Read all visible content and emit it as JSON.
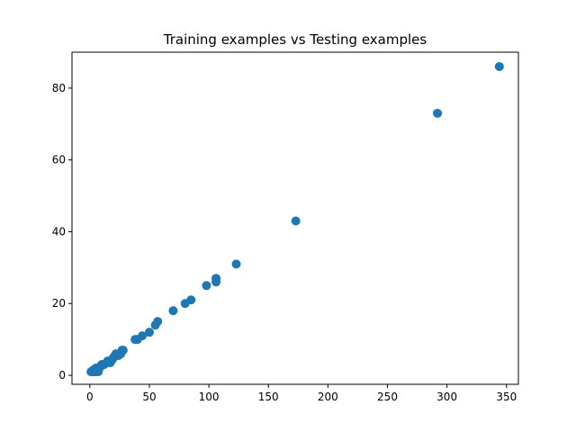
{
  "chart_data": {
    "type": "scatter",
    "title": "Training examples vs Testing examples",
    "xlabel": "",
    "ylabel": "",
    "xlim": [
      -15,
      360
    ],
    "ylim": [
      -2.5,
      90
    ],
    "xticks": [
      0,
      50,
      100,
      150,
      200,
      250,
      300,
      350
    ],
    "yticks": [
      0,
      20,
      40,
      60,
      80
    ],
    "grid": false,
    "color": "#1f77b4",
    "series": [
      {
        "points": [
          [
            1,
            1
          ],
          [
            2,
            1
          ],
          [
            3,
            1
          ],
          [
            4,
            1
          ],
          [
            5,
            1
          ],
          [
            3,
            1.5
          ],
          [
            6,
            1.5
          ],
          [
            7,
            1
          ],
          [
            5,
            2
          ],
          [
            8,
            2
          ],
          [
            9,
            2.5
          ],
          [
            10,
            3
          ],
          [
            12,
            3
          ],
          [
            14,
            3.5
          ],
          [
            15,
            4
          ],
          [
            17,
            3.5
          ],
          [
            18,
            4
          ],
          [
            19,
            4.5
          ],
          [
            20,
            5
          ],
          [
            21,
            5.5
          ],
          [
            22,
            6
          ],
          [
            24,
            5.5
          ],
          [
            26,
            6
          ],
          [
            27,
            7
          ],
          [
            28,
            7
          ],
          [
            38,
            10
          ],
          [
            40,
            10
          ],
          [
            44,
            11
          ],
          [
            50,
            12
          ],
          [
            55,
            14
          ],
          [
            57,
            15
          ],
          [
            70,
            18
          ],
          [
            80,
            20
          ],
          [
            85,
            21
          ],
          [
            98,
            25
          ],
          [
            106,
            26
          ],
          [
            106,
            27
          ],
          [
            123,
            31
          ],
          [
            173,
            43
          ],
          [
            292,
            73
          ],
          [
            344,
            86
          ]
        ]
      }
    ]
  }
}
